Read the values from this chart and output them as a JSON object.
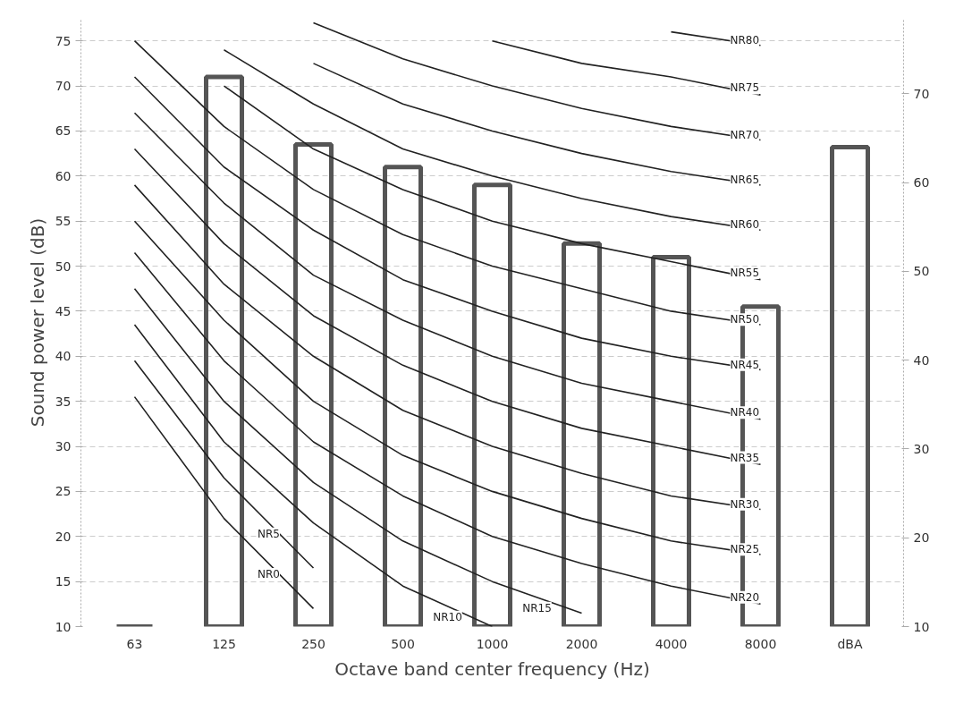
{
  "chart_data": {
    "type": "bar",
    "xlabel": "Octave band center frequency (Hz)",
    "ylabel": "Sound power level (dB)",
    "categories": [
      "63",
      "125",
      "250",
      "500",
      "1000",
      "2000",
      "4000",
      "8000",
      "dBA"
    ],
    "ylim": [
      10,
      77.5
    ],
    "yticks": [
      10,
      15,
      20,
      25,
      30,
      35,
      40,
      45,
      50,
      55,
      60,
      65,
      70,
      75
    ],
    "y2lim": [
      10,
      78.5
    ],
    "y2ticks": [
      10,
      20,
      30,
      40,
      50,
      60,
      70
    ],
    "grid": "y",
    "series": [
      {
        "color": "#555555",
        "values": [
          10,
          71,
          63.5,
          61,
          59,
          52.5,
          51,
          45.5,
          null
        ]
      },
      {
        "axis": "y2",
        "color": "#555555",
        "values": [
          null,
          null,
          null,
          null,
          null,
          null,
          null,
          null,
          64
        ]
      },
      {
        "type": "line",
        "name": "NR0",
        "color": "#222222",
        "values": [
          35.5,
          22,
          12,
          null,
          null,
          null,
          null,
          null,
          null
        ]
      },
      {
        "type": "line",
        "name": "NR5",
        "color": "#222222",
        "values": [
          39.5,
          26.5,
          16.5,
          null,
          null,
          null,
          null,
          null,
          null
        ]
      },
      {
        "type": "line",
        "name": "NR10",
        "color": "#222222",
        "values": [
          43.5,
          30.5,
          21.5,
          14.5,
          10,
          null,
          null,
          null,
          null
        ]
      },
      {
        "type": "line",
        "name": "NR15",
        "color": "#222222",
        "values": [
          47.5,
          35,
          26,
          19.5,
          15,
          11.5,
          null,
          null,
          null
        ]
      },
      {
        "type": "line",
        "name": "NR20",
        "color": "#222222",
        "values": [
          51.5,
          39.5,
          30.5,
          24.5,
          20,
          17,
          14.5,
          12.5,
          null
        ]
      },
      {
        "type": "line",
        "name": "NR25",
        "color": "#222222",
        "values": [
          55,
          44,
          35,
          29,
          25,
          22,
          19.5,
          18,
          null
        ]
      },
      {
        "type": "line",
        "name": "NR30",
        "color": "#222222",
        "values": [
          59,
          48,
          40,
          34,
          30,
          27,
          24.5,
          23,
          null
        ]
      },
      {
        "type": "line",
        "name": "NR35",
        "color": "#222222",
        "values": [
          63,
          52.5,
          44.5,
          39,
          35,
          32,
          30,
          28,
          null
        ]
      },
      {
        "type": "line",
        "name": "NR40",
        "color": "#222222",
        "values": [
          67,
          57,
          49,
          44,
          40,
          37,
          35,
          33,
          null
        ]
      },
      {
        "type": "line",
        "name": "NR45",
        "color": "#222222",
        "values": [
          71,
          61,
          54,
          48.5,
          45,
          42,
          40,
          38.5,
          null
        ]
      },
      {
        "type": "line",
        "name": "NR50",
        "color": "#222222",
        "values": [
          75,
          65.5,
          58.5,
          53.5,
          50,
          47.5,
          45,
          43.5,
          null
        ]
      },
      {
        "type": "line",
        "name": "NR55",
        "color": "#222222",
        "values": [
          null,
          70,
          63,
          58.5,
          55,
          52.5,
          50.5,
          48.5,
          null
        ]
      },
      {
        "type": "line",
        "name": "NR60",
        "color": "#222222",
        "values": [
          null,
          74,
          68,
          63,
          60,
          57.5,
          55.5,
          54,
          null
        ]
      },
      {
        "type": "line",
        "name": "NR65",
        "color": "#222222",
        "values": [
          null,
          null,
          72.5,
          68,
          65,
          62.5,
          60.5,
          59,
          null
        ]
      },
      {
        "type": "line",
        "name": "NR70",
        "color": "#222222",
        "values": [
          null,
          null,
          77,
          73,
          70,
          67.5,
          65.5,
          64,
          null
        ]
      },
      {
        "type": "line",
        "name": "NR75",
        "color": "#222222",
        "values": [
          null,
          null,
          null,
          null,
          75,
          72.5,
          71,
          69,
          null
        ]
      },
      {
        "type": "line",
        "name": "NR80",
        "color": "#222222",
        "values": [
          null,
          null,
          null,
          null,
          null,
          null,
          76,
          74.5,
          null
        ]
      }
    ]
  }
}
